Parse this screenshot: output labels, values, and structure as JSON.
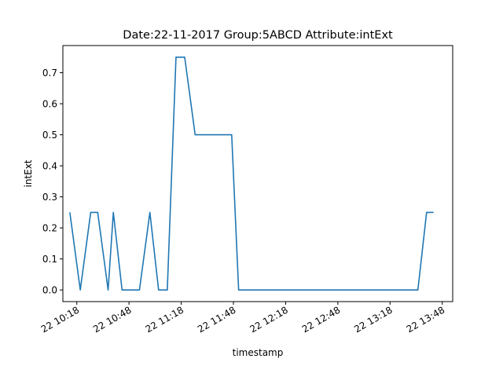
{
  "chart_data": {
    "type": "line",
    "title": "Date:22-11-2017  Group:5ABCD Attribute:intExt",
    "xlabel": "timestamp",
    "ylabel": "intExt",
    "x_unit": "time",
    "xlim": [
      "10:10",
      "13:54"
    ],
    "ylim": [
      -0.0375,
      0.7875
    ],
    "yticks": [
      0.0,
      0.1,
      0.2,
      0.3,
      0.4,
      0.5,
      0.6,
      0.7
    ],
    "ytick_labels": [
      "0.0",
      "0.1",
      "0.2",
      "0.3",
      "0.4",
      "0.5",
      "0.6",
      "0.7"
    ],
    "xticks": [
      "10:18",
      "10:48",
      "11:18",
      "11:48",
      "12:18",
      "12:48",
      "13:18",
      "13:48"
    ],
    "xtick_labels": [
      "22 10:18",
      "22 10:48",
      "22 11:18",
      "22 11:48",
      "22 12:18",
      "22 12:48",
      "22 13:18",
      "22 13:48"
    ],
    "grid": false,
    "legend": "none",
    "series": [
      {
        "color": "#1f77b4",
        "points": [
          {
            "x": "10:14",
            "y": 0.25
          },
          {
            "x": "10:20",
            "y": 0.0
          },
          {
            "x": "10:26",
            "y": 0.25
          },
          {
            "x": "10:30",
            "y": 0.25
          },
          {
            "x": "10:36",
            "y": 0.0
          },
          {
            "x": "10:39",
            "y": 0.25
          },
          {
            "x": "10:44",
            "y": 0.0
          },
          {
            "x": "10:54",
            "y": 0.0
          },
          {
            "x": "11:00",
            "y": 0.25
          },
          {
            "x": "11:05",
            "y": 0.0
          },
          {
            "x": "11:10",
            "y": 0.0
          },
          {
            "x": "11:15",
            "y": 0.75
          },
          {
            "x": "11:20",
            "y": 0.75
          },
          {
            "x": "11:26",
            "y": 0.5
          },
          {
            "x": "11:47",
            "y": 0.5
          },
          {
            "x": "11:51",
            "y": 0.0
          },
          {
            "x": "13:34",
            "y": 0.0
          },
          {
            "x": "13:39",
            "y": 0.25
          },
          {
            "x": "13:43",
            "y": 0.25
          }
        ]
      }
    ]
  }
}
